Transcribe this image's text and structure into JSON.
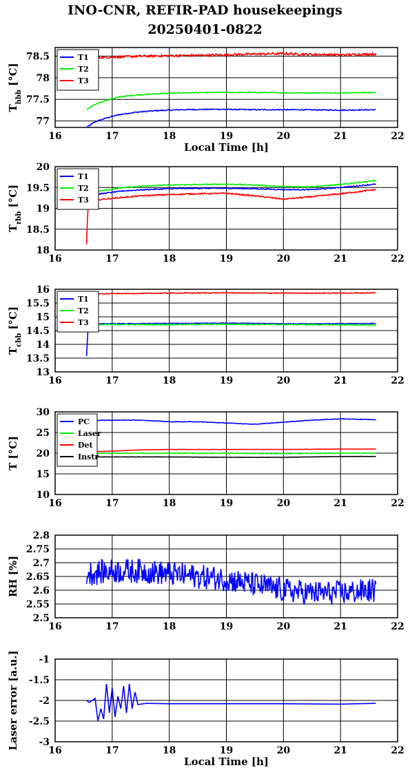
{
  "title_line1": "INO-CNR, REFIR-PAD housekeepings",
  "title_line2": "20250401-0822",
  "colors": {
    "blue": "#0000ff",
    "green": "#00ee00",
    "red": "#ff0000",
    "black": "#000000"
  },
  "chart_data": [
    {
      "type": "line",
      "ylabel": "T_hbb [°C]",
      "xlabel": "Local Time [h]",
      "xlim": [
        16,
        22
      ],
      "ylim": [
        76.85,
        78.7
      ],
      "yticks": [
        77,
        77.5,
        78,
        78.5
      ],
      "ytick_labels": [
        "77",
        "77.5",
        "78",
        "78.5"
      ],
      "xticks": [
        16,
        17,
        18,
        19,
        20,
        21,
        22
      ],
      "xtick_labels": [
        "16",
        "17",
        "18",
        "19",
        "20",
        "21",
        "22"
      ],
      "legend_position": "top-left",
      "series": [
        {
          "name": "T1",
          "color": "#0000ff",
          "x": [
            16.55,
            16.7,
            16.9,
            17.1,
            17.4,
            17.8,
            18.2,
            18.8,
            19.5,
            20.2,
            21.0,
            21.62
          ],
          "y": [
            76.85,
            76.98,
            77.07,
            77.14,
            77.2,
            77.24,
            77.26,
            77.27,
            77.26,
            77.26,
            77.25,
            77.26
          ],
          "noise": 0.012
        },
        {
          "name": "T2",
          "color": "#00ee00",
          "x": [
            16.55,
            16.7,
            16.9,
            17.1,
            17.4,
            17.8,
            18.2,
            18.8,
            19.5,
            20.2,
            21.0,
            21.62
          ],
          "y": [
            77.27,
            77.38,
            77.48,
            77.55,
            77.6,
            77.63,
            77.65,
            77.66,
            77.66,
            77.65,
            77.65,
            77.66
          ],
          "noise": 0.012
        },
        {
          "name": "T3",
          "color": "#ff0000",
          "x": [
            16.55,
            16.8,
            17.1,
            17.5,
            18.0,
            18.5,
            19.0,
            19.5,
            20.0,
            20.5,
            21.0,
            21.62
          ],
          "y": [
            78.46,
            78.47,
            78.48,
            78.5,
            78.51,
            78.52,
            78.53,
            78.55,
            78.56,
            78.54,
            78.53,
            78.55
          ],
          "noise": 0.025
        }
      ]
    },
    {
      "type": "line",
      "ylabel": "T_rbb [°C]",
      "xlim": [
        16,
        22
      ],
      "ylim": [
        18,
        20
      ],
      "yticks": [
        18,
        18.5,
        19,
        19.5,
        20
      ],
      "ytick_labels": [
        "18",
        "18.5",
        "19",
        "19.5",
        "20"
      ],
      "xticks": [
        16,
        17,
        18,
        19,
        20,
        21,
        22
      ],
      "xtick_labels": [
        "16",
        "17",
        "18",
        "19",
        "20",
        "21",
        "22"
      ],
      "legend_position": "top-left",
      "series": [
        {
          "name": "T1",
          "color": "#0000ff",
          "x": [
            16.55,
            16.8,
            17.2,
            17.6,
            18.0,
            18.5,
            19.0,
            19.5,
            20.0,
            20.5,
            21.0,
            21.62
          ],
          "y": [
            19.3,
            19.35,
            19.42,
            19.45,
            19.47,
            19.48,
            19.48,
            19.47,
            19.45,
            19.45,
            19.5,
            19.58
          ],
          "noise": 0.012
        },
        {
          "name": "T2",
          "color": "#00ee00",
          "x": [
            16.55,
            16.8,
            17.2,
            17.6,
            18.0,
            18.5,
            19.0,
            19.5,
            20.0,
            20.5,
            21.0,
            21.62
          ],
          "y": [
            19.35,
            19.42,
            19.5,
            19.54,
            19.56,
            19.57,
            19.58,
            19.56,
            19.52,
            19.52,
            19.57,
            19.67
          ],
          "noise": 0.012
        },
        {
          "name": "T3",
          "color": "#ff0000",
          "x": [
            16.55,
            16.57,
            16.6,
            16.7,
            17.0,
            17.5,
            18.0,
            18.5,
            19.0,
            19.5,
            20.0,
            20.5,
            21.0,
            21.62
          ],
          "y": [
            18.12,
            18.9,
            19.18,
            19.2,
            19.24,
            19.3,
            19.33,
            19.35,
            19.36,
            19.3,
            19.22,
            19.28,
            19.35,
            19.45
          ],
          "noise": 0.015
        }
      ]
    },
    {
      "type": "line",
      "ylabel": "T_cbb [°C]",
      "xlim": [
        16,
        22
      ],
      "ylim": [
        13,
        16
      ],
      "yticks": [
        13,
        13.5,
        14,
        14.5,
        15,
        15.5,
        16
      ],
      "ytick_labels": [
        "13",
        "13.5",
        "14",
        "14.5",
        "15",
        "15.5",
        "16"
      ],
      "xticks": [
        16,
        17,
        18,
        19,
        20,
        21,
        22
      ],
      "xtick_labels": [
        "16",
        "17",
        "18",
        "19",
        "20",
        "21",
        "22"
      ],
      "legend_position": "top-left",
      "series": [
        {
          "name": "T1",
          "color": "#0000ff",
          "x": [
            16.55,
            16.56,
            16.58,
            16.7,
            17.0,
            18.0,
            19.0,
            20.0,
            21.0,
            21.62
          ],
          "y": [
            13.58,
            14.0,
            14.7,
            14.75,
            14.75,
            14.76,
            14.77,
            14.75,
            14.75,
            14.76
          ],
          "noise": 0.012
        },
        {
          "name": "T2",
          "color": "#00ee00",
          "x": [
            16.55,
            16.7,
            17.0,
            18.0,
            19.0,
            20.0,
            21.0,
            21.62
          ],
          "y": [
            14.7,
            14.72,
            14.72,
            14.72,
            14.73,
            14.72,
            14.71,
            14.7
          ],
          "noise": 0.02
        },
        {
          "name": "T3",
          "color": "#ff0000",
          "x": [
            16.55,
            16.7,
            17.0,
            18.0,
            19.0,
            20.0,
            21.0,
            21.62
          ],
          "y": [
            15.82,
            15.83,
            15.84,
            15.86,
            15.87,
            15.86,
            15.86,
            15.87
          ],
          "noise": 0.015
        }
      ]
    },
    {
      "type": "line",
      "ylabel": "T [°C]",
      "xlim": [
        16,
        22
      ],
      "ylim": [
        10,
        30
      ],
      "yticks": [
        10,
        15,
        20,
        25,
        30
      ],
      "ytick_labels": [
        "10",
        "15",
        "20",
        "25",
        "30"
      ],
      "xticks": [
        16,
        17,
        18,
        19,
        20,
        21,
        22
      ],
      "xtick_labels": [
        "16",
        "17",
        "18",
        "19",
        "20",
        "21",
        "22"
      ],
      "legend_position": "top-left",
      "series": [
        {
          "name": "PC",
          "color": "#0000ff",
          "x": [
            16.55,
            17.0,
            17.5,
            18.0,
            18.5,
            19.0,
            19.5,
            20.0,
            20.5,
            21.0,
            21.62
          ],
          "y": [
            27.9,
            28.0,
            28.0,
            27.6,
            27.6,
            27.3,
            27.0,
            27.5,
            28.0,
            28.3,
            28.1
          ],
          "noise": 0.06
        },
        {
          "name": "Laser",
          "color": "#00ee00",
          "x": [
            16.55,
            17.0,
            18.0,
            19.0,
            20.0,
            21.0,
            21.62
          ],
          "y": [
            19.9,
            20.0,
            20.0,
            20.0,
            19.9,
            20.0,
            20.0
          ],
          "noise": 0.08
        },
        {
          "name": "Det",
          "color": "#ff0000",
          "x": [
            16.55,
            17.0,
            17.5,
            18.0,
            19.0,
            20.0,
            21.0,
            21.62
          ],
          "y": [
            20.3,
            20.5,
            20.8,
            20.9,
            20.9,
            20.9,
            21.0,
            21.0
          ],
          "noise": 0.03
        },
        {
          "name": "Instr",
          "color": "#000000",
          "x": [
            16.55,
            17.0,
            18.0,
            19.0,
            20.0,
            21.0,
            21.62
          ],
          "y": [
            19.1,
            19.1,
            19.1,
            19.0,
            19.0,
            19.2,
            19.2
          ],
          "noise": 0.03
        }
      ]
    },
    {
      "type": "line",
      "ylabel": "RH [%]",
      "xlim": [
        16,
        22
      ],
      "ylim": [
        2.5,
        2.8
      ],
      "yticks": [
        2.5,
        2.55,
        2.6,
        2.65,
        2.7,
        2.75,
        2.8
      ],
      "ytick_labels": [
        "2.5",
        "2.55",
        "2.6",
        "2.65",
        "2.7",
        "2.75",
        "2.8"
      ],
      "xticks": [
        16,
        17,
        18,
        19,
        20,
        21,
        22
      ],
      "xtick_labels": [
        "16",
        "17",
        "18",
        "19",
        "20",
        "21",
        "22"
      ],
      "series": [
        {
          "name": "RH",
          "color": "#0000ff",
          "x": [
            16.55,
            17.0,
            17.5,
            18.0,
            18.5,
            19.0,
            19.5,
            20.0,
            20.5,
            21.0,
            21.62
          ],
          "y": [
            2.66,
            2.67,
            2.67,
            2.66,
            2.65,
            2.64,
            2.62,
            2.6,
            2.59,
            2.59,
            2.6
          ],
          "noise": 0.045
        }
      ]
    },
    {
      "type": "line",
      "ylabel": "Laser error [a.u.]",
      "xlabel": "Local Time [h]",
      "xlim": [
        16,
        22
      ],
      "ylim": [
        -3,
        -1
      ],
      "yticks": [
        -3,
        -2.5,
        -2,
        -1.5,
        -1
      ],
      "ytick_labels": [
        "-3",
        "-2.5",
        "-2",
        "-1.5",
        "-1"
      ],
      "xticks": [
        16,
        17,
        18,
        19,
        20,
        21,
        22
      ],
      "xtick_labels": [
        "16",
        "17",
        "18",
        "19",
        "20",
        "21",
        "22"
      ],
      "series": [
        {
          "name": "Laser error",
          "color": "#0000ff",
          "x": [
            16.55,
            16.6,
            16.7,
            16.75,
            16.8,
            16.85,
            16.9,
            16.95,
            17.0,
            17.05,
            17.1,
            17.15,
            17.2,
            17.25,
            17.3,
            17.35,
            17.4,
            17.45,
            17.6,
            18.0,
            19.0,
            20.0,
            21.0,
            21.62
          ],
          "y": [
            -2.0,
            -2.05,
            -1.95,
            -2.5,
            -2.2,
            -2.45,
            -1.6,
            -2.3,
            -1.7,
            -2.4,
            -1.9,
            -2.2,
            -1.65,
            -2.3,
            -1.6,
            -2.2,
            -1.8,
            -2.1,
            -2.07,
            -2.08,
            -2.08,
            -2.08,
            -2.09,
            -2.07
          ],
          "noise": 0.0
        }
      ]
    }
  ]
}
